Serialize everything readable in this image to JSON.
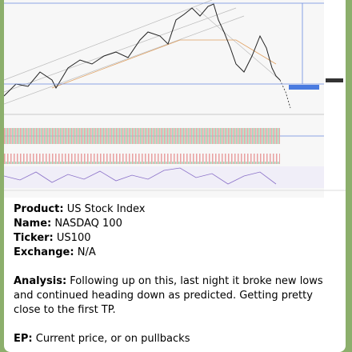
{
  "message": {
    "fields": [
      {
        "label": "Product:",
        "value": "US Stock Index"
      },
      {
        "label": "Name:",
        "value": "NASDAQ 100"
      },
      {
        "label": "Ticker:",
        "value": "US100"
      },
      {
        "label": "Exchange:",
        "value": "N/A"
      }
    ],
    "analysis": {
      "label": "Analysis:",
      "value": "Following up on this, last night it broke new lows and continued heading down as predicted. Getting pretty close to the first TP."
    },
    "ep": {
      "label": "EP:",
      "value": "Current price, or on pullbacks"
    }
  }
}
